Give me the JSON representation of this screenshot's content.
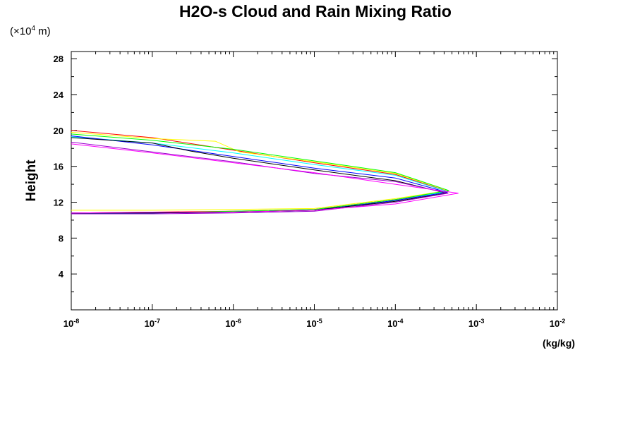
{
  "chart_data": {
    "type": "line",
    "title": "H2O-s Cloud and Rain Mixing Ratio",
    "ylabel": "Height",
    "yunit": "(×10",
    "yunit_exp": "4",
    "yunit_suffix": " m)",
    "xunit": "(kg/kg)",
    "x_scale": "log",
    "xlim": [
      1e-08,
      0.01
    ],
    "ylim": [
      0,
      28.8
    ],
    "x_ticks": [
      {
        "value": 1e-08,
        "base": "10",
        "exp": "-8"
      },
      {
        "value": 1e-07,
        "base": "10",
        "exp": "-7"
      },
      {
        "value": 1e-06,
        "base": "10",
        "exp": "-6"
      },
      {
        "value": 1e-05,
        "base": "10",
        "exp": "-5"
      },
      {
        "value": 0.0001,
        "base": "10",
        "exp": "-4"
      },
      {
        "value": 0.001,
        "base": "10",
        "exp": "-3"
      },
      {
        "value": 0.01,
        "base": "10",
        "exp": "-2"
      }
    ],
    "y_ticks": [
      "4",
      "8",
      "12",
      "16",
      "20",
      "24",
      "28"
    ],
    "series": [
      {
        "color": "#ff0000",
        "points": [
          [
            1e-08,
            20.0
          ],
          [
            1e-07,
            19.2
          ],
          [
            1e-06,
            17.8
          ],
          [
            1e-05,
            16.4
          ],
          [
            0.0001,
            15.1
          ],
          [
            0.00045,
            13.2
          ],
          [
            0.0001,
            12.3
          ],
          [
            1e-05,
            11.2
          ],
          [
            1e-06,
            11.0
          ],
          [
            1e-07,
            10.9
          ],
          [
            1e-08,
            10.8
          ]
        ]
      },
      {
        "color": "#ffff00",
        "points": [
          [
            1e-08,
            19.8
          ],
          [
            1e-07,
            19.1
          ],
          [
            6e-07,
            18.8
          ],
          [
            1.2e-06,
            17.6
          ],
          [
            1e-05,
            16.5
          ],
          [
            0.0001,
            15.2
          ],
          [
            0.00045,
            13.3
          ],
          [
            0.0001,
            12.4
          ],
          [
            1e-05,
            11.3
          ],
          [
            1e-06,
            11.2
          ],
          [
            1e-07,
            11.1
          ],
          [
            1e-08,
            11.1
          ]
        ]
      },
      {
        "color": "#00ff00",
        "points": [
          [
            1e-08,
            19.6
          ],
          [
            1e-07,
            18.9
          ],
          [
            1e-06,
            17.9
          ],
          [
            1e-05,
            16.6
          ],
          [
            0.0001,
            15.3
          ],
          [
            0.00046,
            13.3
          ],
          [
            0.0001,
            12.3
          ],
          [
            1e-05,
            11.2
          ],
          [
            1e-06,
            11.0
          ],
          [
            1e-07,
            10.8
          ],
          [
            1e-08,
            10.8
          ]
        ]
      },
      {
        "color": "#00ffff",
        "points": [
          [
            1e-08,
            19.3
          ],
          [
            1e-07,
            18.6
          ],
          [
            1e-06,
            17.5
          ],
          [
            1e-05,
            16.2
          ],
          [
            0.0001,
            15.0
          ],
          [
            0.00044,
            13.2
          ],
          [
            0.0001,
            12.2
          ],
          [
            1e-05,
            11.1
          ],
          [
            1e-06,
            10.9
          ],
          [
            1e-07,
            10.8
          ],
          [
            1e-08,
            10.7
          ]
        ]
      },
      {
        "color": "#0000ff",
        "points": [
          [
            1e-08,
            19.4
          ],
          [
            1e-07,
            18.4
          ],
          [
            1e-06,
            17.1
          ],
          [
            1e-05,
            15.8
          ],
          [
            0.0001,
            14.7
          ],
          [
            0.00044,
            13.1
          ],
          [
            0.0001,
            12.2
          ],
          [
            1e-05,
            11.1
          ],
          [
            1e-06,
            10.9
          ],
          [
            1e-07,
            10.8
          ],
          [
            1e-08,
            10.8
          ]
        ]
      },
      {
        "color": "#000000",
        "points": [
          [
            1e-08,
            19.2
          ],
          [
            1e-07,
            18.6
          ],
          [
            3e-07,
            17.7
          ],
          [
            1e-06,
            16.9
          ],
          [
            1e-05,
            15.6
          ],
          [
            0.0001,
            14.4
          ],
          [
            0.00043,
            13.0
          ],
          [
            0.0001,
            12.1
          ],
          [
            1e-05,
            11.1
          ],
          [
            1e-06,
            10.9
          ],
          [
            1e-07,
            10.8
          ],
          [
            1e-08,
            10.8
          ]
        ]
      },
      {
        "color": "#9900cc",
        "points": [
          [
            1e-08,
            18.7
          ],
          [
            1e-07,
            17.6
          ],
          [
            1e-06,
            16.5
          ],
          [
            1e-05,
            15.2
          ],
          [
            0.0001,
            14.3
          ],
          [
            0.00045,
            13.0
          ],
          [
            0.0001,
            12.0
          ],
          [
            1e-05,
            11.0
          ],
          [
            1e-06,
            10.8
          ],
          [
            1e-07,
            10.7
          ],
          [
            1e-08,
            10.7
          ]
        ]
      },
      {
        "color": "#ff00ff",
        "points": [
          [
            1e-08,
            18.5
          ],
          [
            1e-07,
            17.5
          ],
          [
            1e-06,
            16.4
          ],
          [
            1e-05,
            15.3
          ],
          [
            0.0001,
            14.0
          ],
          [
            0.0006,
            13.0
          ],
          [
            0.0001,
            11.8
          ],
          [
            1e-05,
            11.1
          ],
          [
            1e-06,
            10.9
          ],
          [
            1e-07,
            10.9
          ],
          [
            1e-08,
            10.8
          ]
        ]
      }
    ]
  }
}
